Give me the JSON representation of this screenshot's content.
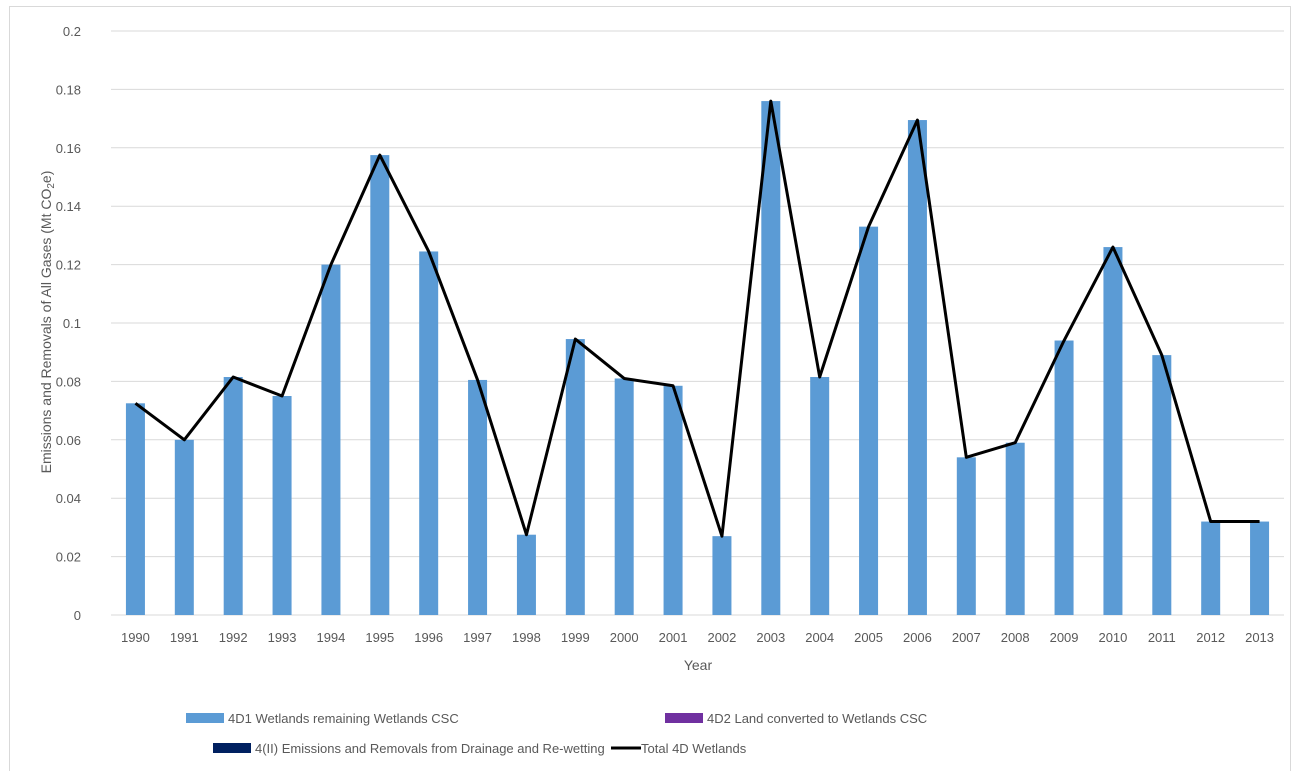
{
  "chart_data": {
    "type": "bar",
    "xlabel": "Year",
    "ylabel": {
      "prefix": "Emissions and Removals of All Gases (Mt CO",
      "subscript": "2",
      "suffix": "e)"
    },
    "ylim": [
      0,
      0.2
    ],
    "yticks": [
      "0",
      "0.02",
      "0.04",
      "0.06",
      "0.08",
      "0.1",
      "0.12",
      "0.14",
      "0.16",
      "0.18",
      "0.2"
    ],
    "grid": true,
    "legend_position": "bottom",
    "categories": [
      "1990",
      "1991",
      "1992",
      "1993",
      "1994",
      "1995",
      "1996",
      "1997",
      "1998",
      "1999",
      "2000",
      "2001",
      "2002",
      "2003",
      "2004",
      "2005",
      "2006",
      "2007",
      "2008",
      "2009",
      "2010",
      "2011",
      "2012",
      "2013"
    ],
    "series": [
      {
        "name": "4D1 Wetlands remaining Wetlands CSC",
        "kind": "bar",
        "color": "#5b9bd5",
        "values": [
          0.0725,
          0.06,
          0.0815,
          0.075,
          0.12,
          0.1575,
          0.1245,
          0.0805,
          0.0275,
          0.0945,
          0.081,
          0.0785,
          0.027,
          0.176,
          0.0815,
          0.133,
          0.1695,
          0.054,
          0.059,
          0.094,
          0.126,
          0.089,
          0.032,
          0.032
        ]
      },
      {
        "name": "4D2 Land converted to Wetlands CSC",
        "kind": "bar",
        "color": "#7030a0",
        "values": [
          0,
          0,
          0,
          0,
          0,
          0,
          0,
          0,
          0,
          0,
          0,
          0,
          0,
          0,
          0,
          0,
          0,
          0,
          0,
          0,
          0,
          0,
          0,
          0
        ]
      },
      {
        "name": "4(II) Emissions and Removals from Drainage and Re-wetting",
        "kind": "bar",
        "color": "#002060",
        "values": [
          0,
          0,
          0,
          0,
          0,
          0,
          0,
          0,
          0,
          0,
          0,
          0,
          0,
          0,
          0,
          0,
          0,
          0,
          0,
          0,
          0,
          0,
          0,
          0
        ]
      },
      {
        "name": "Total 4D Wetlands",
        "kind": "line",
        "color": "#000000",
        "values": [
          0.0725,
          0.06,
          0.0815,
          0.075,
          0.12,
          0.1575,
          0.1245,
          0.0805,
          0.0275,
          0.0945,
          0.081,
          0.0785,
          0.027,
          0.176,
          0.0815,
          0.133,
          0.1695,
          0.054,
          0.059,
          0.094,
          0.126,
          0.089,
          0.032,
          0.032
        ]
      }
    ]
  }
}
